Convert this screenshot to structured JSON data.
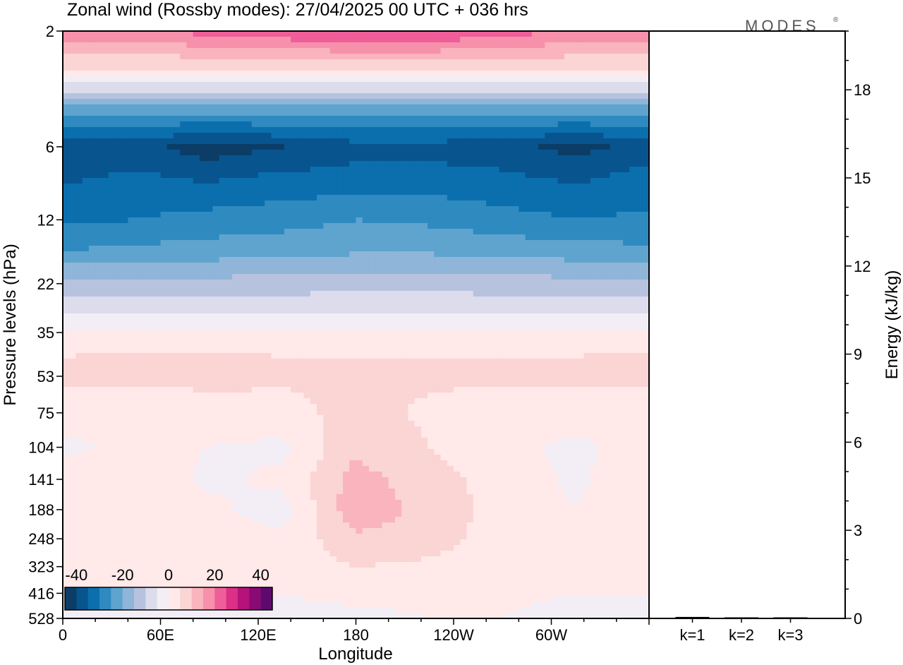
{
  "title": "Zonal wind (Rossby modes):  27/04/2025  00 UTC  + 036 hrs",
  "logo": "MODES",
  "logo_mark": "®",
  "chart_data": [
    {
      "type": "heatmap",
      "title": "Zonal wind (Rossby modes):  27/04/2025  00 UTC  + 036 hrs",
      "xlabel": "Longitude",
      "ylabel": "Pressure levels (hPa)",
      "x_ticks": [
        "0",
        "60E",
        "120E",
        "180",
        "120W",
        "60W"
      ],
      "y_ticks": [
        "2",
        "6",
        "12",
        "22",
        "35",
        "53",
        "75",
        "104",
        "141",
        "188",
        "248",
        "323",
        "416",
        "528"
      ],
      "y_scale": "log",
      "colorbar": {
        "ticks": [
          "-40",
          "-20",
          "0",
          "20",
          "40"
        ],
        "range": [
          -45,
          45
        ],
        "colors": [
          "#0b3d66",
          "#08548f",
          "#0b6fae",
          "#2f8ac0",
          "#5ea4cf",
          "#8fb5d8",
          "#b7c2de",
          "#dcdcec",
          "#f3eef5",
          "#ffe9e9",
          "#fbd4d4",
          "#f9b4bd",
          "#f791ab",
          "#ef5e99",
          "#dc2f86",
          "#b5127a",
          "#8a0a74",
          "#5d0a6e"
        ]
      },
      "rows": [
        {
          "level": "2",
          "values": [
            18,
            18,
            22,
            24,
            26,
            26,
            22,
            20,
            18
          ]
        },
        {
          "level": "3",
          "values": [
            3,
            3,
            3,
            3,
            3,
            3,
            3,
            3,
            3
          ]
        },
        {
          "level": "4",
          "values": [
            -20,
            -20,
            -20,
            -20,
            -20,
            -20,
            -20,
            -20,
            -20
          ]
        },
        {
          "level": "6",
          "values": [
            -38,
            -38,
            -43,
            -40,
            -37,
            -37,
            -38,
            -42,
            -38
          ]
        },
        {
          "level": "8",
          "values": [
            -36,
            -34,
            -36,
            -34,
            -33,
            -33,
            -34,
            -36,
            -33
          ]
        },
        {
          "level": "12",
          "values": [
            -31,
            -30,
            -28,
            -27,
            -25,
            -26,
            -28,
            -30,
            -29
          ]
        },
        {
          "level": "16",
          "values": [
            -25,
            -24,
            -23,
            -22,
            -21,
            -21,
            -22,
            -23,
            -24
          ]
        },
        {
          "level": "22",
          "values": [
            -14,
            -14,
            -13,
            -13,
            -12,
            -12,
            -13,
            -13,
            -14
          ]
        },
        {
          "level": "28",
          "values": [
            -6,
            -6,
            -6,
            -6,
            -6,
            -6,
            -6,
            -6,
            -6
          ]
        },
        {
          "level": "35",
          "values": [
            1,
            1,
            1,
            1,
            1,
            1,
            1,
            1,
            1
          ]
        },
        {
          "level": "44",
          "values": [
            5,
            6,
            6,
            5,
            5,
            5,
            5,
            5,
            6
          ]
        },
        {
          "level": "53",
          "values": [
            6,
            6,
            7,
            6,
            6,
            6,
            6,
            6,
            7
          ]
        },
        {
          "level": "75",
          "values": [
            2,
            2,
            2,
            3,
            7,
            4,
            2,
            2,
            1
          ]
        },
        {
          "level": "104",
          "values": [
            -1,
            1,
            0,
            -1,
            9,
            5,
            1,
            -1,
            2
          ]
        },
        {
          "level": "141",
          "values": [
            2,
            4,
            -1,
            1,
            12,
            7,
            3,
            -1,
            4
          ]
        },
        {
          "level": "188",
          "values": [
            1,
            4,
            1,
            -2,
            14,
            8,
            3,
            0,
            5
          ]
        },
        {
          "level": "248",
          "values": [
            2,
            4,
            2,
            1,
            9,
            7,
            3,
            1,
            4
          ]
        },
        {
          "level": "323",
          "values": [
            1,
            2,
            1,
            2,
            5,
            4,
            2,
            1,
            2
          ]
        },
        {
          "level": "416",
          "values": [
            0,
            0,
            0,
            0,
            1,
            1,
            1,
            0,
            0
          ]
        },
        {
          "level": "528",
          "values": [
            -1,
            -1,
            -1,
            -1,
            -1,
            0,
            0,
            -2,
            -1
          ]
        }
      ]
    },
    {
      "type": "bar",
      "ylabel": "Energy (kJ/kg)",
      "categories": [
        "k=1",
        "k=2",
        "k=3"
      ],
      "values": [
        0.05,
        0.03,
        0.03
      ],
      "ylim": [
        0,
        20
      ],
      "y_ticks": [
        "0",
        "3",
        "6",
        "9",
        "12",
        "15",
        "18"
      ]
    }
  ]
}
